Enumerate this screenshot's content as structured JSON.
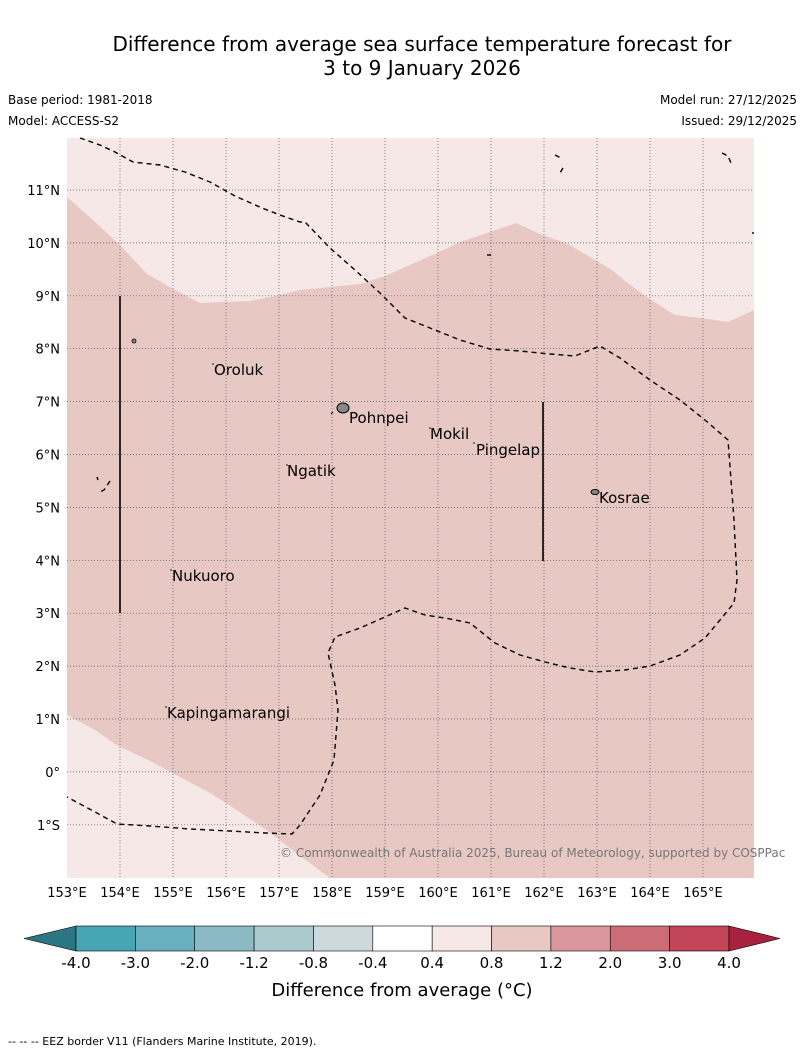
{
  "header": {
    "title_line1": "Difference from average sea surface temperature forecast for",
    "title_line2": "3 to 9 January 2026",
    "base_period": "Base period: 1981-2018",
    "model": "Model: ACCESS-S2",
    "model_run": "Model run: 27/12/2025",
    "issued": "Issued: 29/12/2025"
  },
  "map": {
    "lon_labels": [
      "153°E",
      "154°E",
      "155°E",
      "156°E",
      "157°E",
      "158°E",
      "159°E",
      "160°E",
      "161°E",
      "162°E",
      "163°E",
      "164°E",
      "165°E"
    ],
    "lat_labels": [
      "11°N",
      "10°N",
      "9°N",
      "8°N",
      "7°N",
      "6°N",
      "5°N",
      "4°N",
      "3°N",
      "2°N",
      "1°N",
      "0°",
      "1°S"
    ],
    "places": [
      "Oroluk",
      "Pohnpei",
      "Mokil",
      "Pingelap",
      "Ngatik",
      "Kosrae",
      "Nukuoro",
      "Kapingamarangi"
    ],
    "copyright": "© Commonwealth of Australia 2025, Bureau of Meteorology, supported by COSPPac",
    "colors": {
      "band_0_4_0_8": "#f5e8e7",
      "band_0_8_1_2": "#e8c8c3",
      "border": "#000000"
    }
  },
  "colorbar": {
    "ticks": [
      "-4.0",
      "-3.0",
      "-2.0",
      "-1.2",
      "-0.8",
      "-0.4",
      "0.4",
      "0.8",
      "1.2",
      "2.0",
      "3.0",
      "4.0"
    ],
    "colors": [
      "#2c7582",
      "#48a5b4",
      "#68b0bf",
      "#8cbac4",
      "#aac9cc",
      "#ccdadd",
      "#ffffff",
      "#f5e8e7",
      "#e8c8c3",
      "#d9969c",
      "#cc6c76",
      "#c24658",
      "#a8213e"
    ],
    "label": "Difference from average (°C)"
  },
  "footnote": "--  --  -- EEZ border V11 (Flanders Marine Institute, 2019)."
}
